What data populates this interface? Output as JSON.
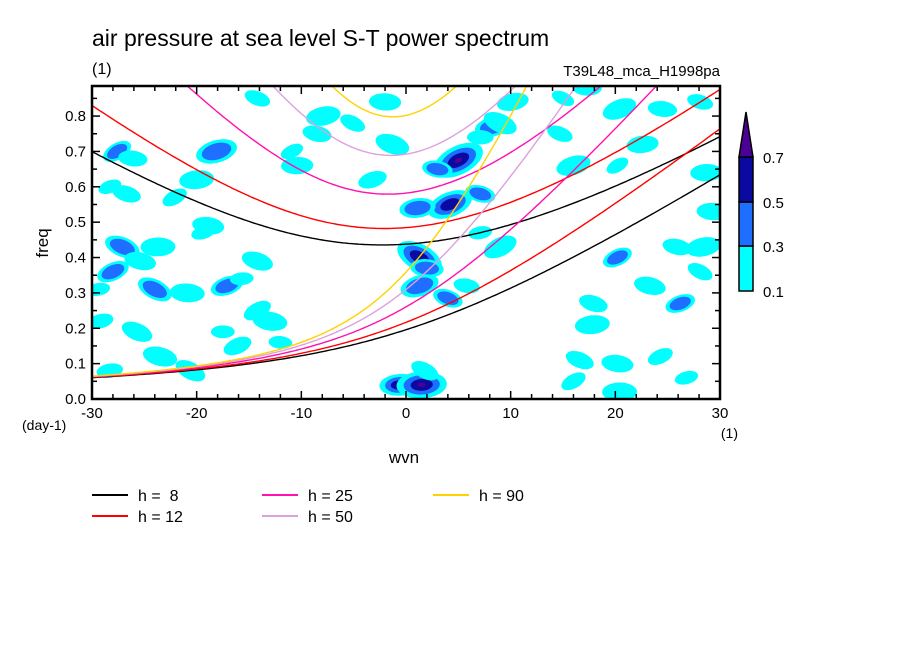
{
  "chart_data": {
    "type": "heatmap",
    "title": "air pressure at sea level S-T power spectrum",
    "subtitle_left": "(1)",
    "subtitle_right": "T39L48_mca_H1998pa",
    "xlabel": "wvn",
    "ylabel": "freq",
    "xunit": "(1)",
    "yunit": "(day-1)",
    "xlim": [
      -30,
      30
    ],
    "ylim": [
      0,
      0.885
    ],
    "xticks": [
      -30,
      -20,
      -10,
      0,
      10,
      20,
      30
    ],
    "xtick_labels": [
      "-30",
      "-20",
      "-10",
      "0",
      "10",
      "20",
      "30"
    ],
    "yticks": [
      0,
      0.1,
      0.2,
      0.3,
      0.4,
      0.5,
      0.6,
      0.7,
      0.8
    ],
    "ytick_labels": [
      "0.0",
      "0.1",
      "0.2",
      "0.3",
      "0.4",
      "0.5",
      "0.6",
      "0.7",
      "0.8"
    ],
    "grid": false,
    "colorbar": {
      "levels": [
        0.1,
        0.3,
        0.5,
        0.7
      ],
      "labels": [
        "0.1",
        "0.3",
        "0.5",
        "0.7"
      ],
      "colors": [
        "#00ffff",
        "#1e6eff",
        "#0a0aa0",
        "#4b0096"
      ]
    },
    "dispersion_curves": [
      {
        "name": "h =  8",
        "h": 8,
        "color": "#000000"
      },
      {
        "name": "h = 12",
        "h": 12,
        "color": "#ff0000"
      },
      {
        "name": "h = 25",
        "h": 25,
        "color": "#ff10b0"
      },
      {
        "name": "h = 50",
        "h": 50,
        "color": "#dda0dd"
      },
      {
        "name": "h = 90",
        "h": 90,
        "color": "#ffd200"
      }
    ],
    "legend_placement": "bottom",
    "power_blobs": [
      [
        -27.6,
        0.7,
        2
      ],
      [
        -26.1,
        0.68,
        1
      ],
      [
        -18.1,
        0.7,
        2
      ],
      [
        -14.2,
        0.85,
        1
      ],
      [
        -10.4,
        0.66,
        1
      ],
      [
        -10.9,
        0.7,
        1
      ],
      [
        -8.5,
        0.75,
        1
      ],
      [
        -7.9,
        0.8,
        1
      ],
      [
        -5.1,
        0.78,
        1
      ],
      [
        -2.0,
        0.84,
        1
      ],
      [
        -28.3,
        0.6,
        1
      ],
      [
        -26.7,
        0.58,
        1
      ],
      [
        -20.0,
        0.62,
        1
      ],
      [
        -22.1,
        0.57,
        1
      ],
      [
        -18.9,
        0.49,
        1
      ],
      [
        -19.4,
        0.47,
        1
      ],
      [
        -27.1,
        0.43,
        2
      ],
      [
        -23.7,
        0.43,
        1
      ],
      [
        -28.0,
        0.36,
        2
      ],
      [
        -25.4,
        0.39,
        1
      ],
      [
        -29.4,
        0.31,
        1
      ],
      [
        -24.0,
        0.31,
        2
      ],
      [
        -20.9,
        0.3,
        1
      ],
      [
        -17.1,
        0.32,
        2
      ],
      [
        -14.2,
        0.39,
        1
      ],
      [
        -15.7,
        0.34,
        1
      ],
      [
        -14.2,
        0.25,
        1
      ],
      [
        -13.0,
        0.22,
        1
      ],
      [
        -29.2,
        0.22,
        1
      ],
      [
        -25.7,
        0.19,
        1
      ],
      [
        -17.5,
        0.19,
        1
      ],
      [
        -16.1,
        0.15,
        1
      ],
      [
        -23.5,
        0.12,
        1
      ],
      [
        -28.3,
        0.08,
        1
      ],
      [
        -20.6,
        0.08,
        1
      ],
      [
        -12.0,
        0.16,
        1
      ],
      [
        -3.2,
        0.62,
        1
      ],
      [
        -1.3,
        0.72,
        1
      ],
      [
        -0.6,
        0.04,
        3
      ],
      [
        5.0,
        0.675,
        4
      ],
      [
        3.0,
        0.65,
        2
      ],
      [
        8.3,
        0.77,
        2
      ],
      [
        9.0,
        0.78,
        1
      ],
      [
        7.1,
        0.74,
        1
      ],
      [
        4.2,
        0.55,
        3
      ],
      [
        7.1,
        0.58,
        2
      ],
      [
        1.1,
        0.54,
        2
      ],
      [
        1.3,
        0.4,
        3
      ],
      [
        2.0,
        0.37,
        2
      ],
      [
        1.3,
        0.32,
        2
      ],
      [
        4.0,
        0.285,
        2
      ],
      [
        1.5,
        0.04,
        4
      ],
      [
        9.0,
        0.43,
        1
      ],
      [
        5.8,
        0.32,
        1
      ],
      [
        10.2,
        0.84,
        1
      ],
      [
        15.0,
        0.85,
        1
      ],
      [
        17.3,
        0.88,
        1
      ],
      [
        20.4,
        0.82,
        1
      ],
      [
        28.1,
        0.84,
        1
      ],
      [
        22.6,
        0.72,
        1
      ],
      [
        20.2,
        0.66,
        1
      ],
      [
        24.5,
        0.82,
        1
      ],
      [
        16.0,
        0.66,
        1
      ],
      [
        14.7,
        0.75,
        1
      ],
      [
        28.7,
        0.64,
        1
      ],
      [
        20.2,
        0.4,
        2
      ],
      [
        25.9,
        0.43,
        1
      ],
      [
        28.4,
        0.43,
        1
      ],
      [
        28.1,
        0.36,
        1
      ],
      [
        29.3,
        0.53,
        1
      ],
      [
        26.2,
        0.27,
        2
      ],
      [
        17.9,
        0.27,
        1
      ],
      [
        17.8,
        0.21,
        1
      ],
      [
        16.0,
        0.05,
        1
      ],
      [
        20.2,
        0.1,
        1
      ],
      [
        26.8,
        0.06,
        1
      ],
      [
        16.6,
        0.11,
        1
      ],
      [
        20.4,
        0.02,
        1
      ],
      [
        24.3,
        0.12,
        1
      ],
      [
        23.3,
        0.32,
        1
      ],
      [
        7.1,
        0.47,
        1
      ],
      [
        1.8,
        0.08,
        1
      ]
    ]
  }
}
